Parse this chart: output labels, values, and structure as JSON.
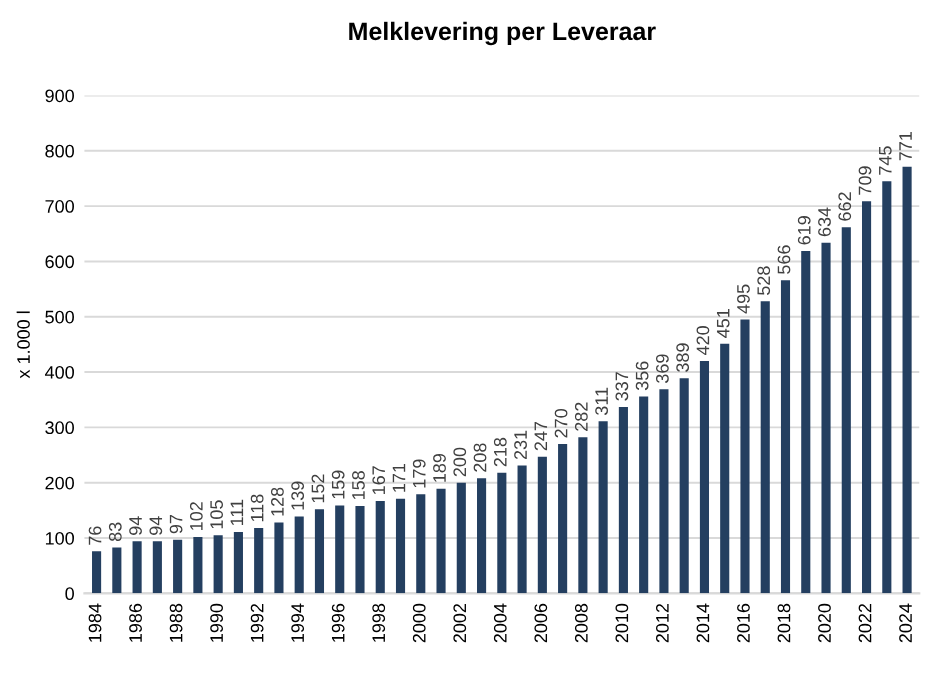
{
  "chart_data": {
    "type": "bar",
    "title": "Melklevering per Leveraar",
    "ylabel": "x 1.000 l",
    "categories": [
      "1984",
      null,
      "1986",
      null,
      "1988",
      null,
      "1990",
      null,
      "1992",
      null,
      "1994",
      null,
      "1996",
      null,
      "1998",
      null,
      "2000",
      null,
      "2002",
      null,
      "2004",
      null,
      "2006",
      null,
      "2008",
      null,
      "2010",
      null,
      "2012",
      null,
      "2014",
      null,
      "2016",
      null,
      "2018",
      null,
      "2020",
      null,
      "2022",
      null,
      "2024"
    ],
    "values": [
      76,
      83,
      94,
      94,
      97,
      102,
      105,
      111,
      118,
      128,
      139,
      152,
      159,
      158,
      167,
      171,
      179,
      189,
      200,
      208,
      218,
      231,
      247,
      270,
      282,
      311,
      337,
      356,
      369,
      389,
      420,
      451,
      495,
      528,
      566,
      619,
      634,
      662,
      709,
      745,
      771
    ],
    "color": "#243f60",
    "ylim": [
      0,
      900
    ],
    "yticks": [
      0,
      100,
      200,
      300,
      400,
      500,
      600,
      700,
      800,
      900
    ],
    "grid": "y",
    "data_labels": true,
    "legend": false
  }
}
